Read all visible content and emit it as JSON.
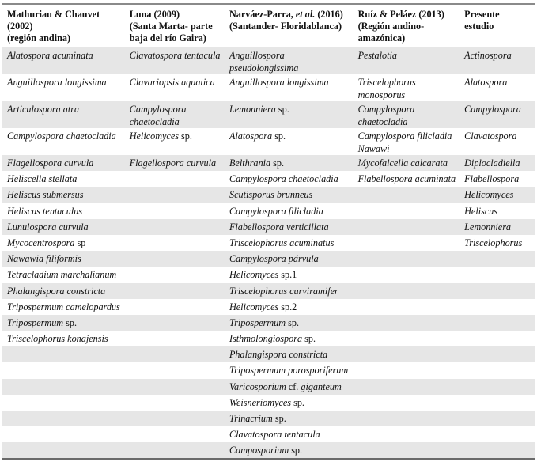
{
  "table": {
    "headers": [
      [
        [
          "Mathuriau & Chauvet"
        ],
        [
          "(2002)"
        ],
        [
          "(región andina)"
        ]
      ],
      [
        [
          "Luna (2009)"
        ],
        [
          "(Santa Marta- parte"
        ],
        [
          "baja del río Gaira)"
        ]
      ],
      [
        [
          "Narváez-Parra, ",
          "et al.",
          " (2016)"
        ],
        [
          "(Santander- Floridablanca)"
        ]
      ],
      [
        [
          "Ruíz & Peláez (2013)"
        ],
        [
          "(Región andino-"
        ],
        [
          "amazónica)"
        ]
      ],
      [
        [
          "Presente estudio"
        ]
      ]
    ],
    "rows": [
      [
        "Alatospora acuminata",
        "Clavatospora tentacula",
        "Anguillospora pseudolongissima",
        "Pestalotia",
        "Actinospora"
      ],
      [
        "Anguillospora longissima",
        "Clavariopsis aquatica",
        "Anguillospora longissima",
        "Triscelophorus monosporus",
        "Alatospora"
      ],
      [
        "Articulospora atra",
        "Campylospora chaetocladia",
        "Lemonniera sp.",
        "Campylospora chaetocladia",
        "Campylospora"
      ],
      [
        "Campylospora chaetocladia",
        "Helicomyces sp.",
        "Alatospora sp.",
        "Campylospora filicladia Nawawi",
        "Clavatospora"
      ],
      [
        "Flagellospora curvula",
        "Flagellospora curvula",
        "Belthrania sp.",
        "Mycofalcella calcarata",
        "Diplocladiella"
      ],
      [
        "Heliscella stellata",
        "",
        "Campylospora chaetocladia",
        "Flabellospora acuminata",
        "Flabellospora"
      ],
      [
        "Heliscus submersus",
        "",
        "Scutisporus brunneus",
        "",
        "Helicomyces"
      ],
      [
        "Heliscus tentaculus",
        "",
        "Campylospora filicladia",
        "",
        "Heliscus"
      ],
      [
        "Lunulospora curvula",
        "",
        "Flabellospora verticillata",
        "",
        "Lemonniera"
      ],
      [
        "Mycocentrospora sp",
        "",
        "Triscelophorus acuminatus",
        "",
        "Triscelophorus"
      ],
      [
        "Nawawia filiformis",
        "",
        "Campylospora párvula",
        "",
        ""
      ],
      [
        "Tetracladium marchalianum",
        "",
        "Helicomyces sp.1",
        "",
        ""
      ],
      [
        "Phalangispora constricta",
        "",
        "Triscelophorus curviramifer",
        "",
        ""
      ],
      [
        "Tripospermum camelopardus",
        "",
        "Helicomyces sp.2",
        "",
        ""
      ],
      [
        "Tripospermum sp.",
        "",
        "Tripospermum sp.",
        "",
        ""
      ],
      [
        "Triscelophorus konajensis",
        "",
        "Isthmolongiospora sp.",
        "",
        ""
      ],
      [
        "",
        "",
        "Phalangispora constricta",
        "",
        ""
      ],
      [
        "",
        "",
        "Tripospermum porosporiferum",
        "",
        ""
      ],
      [
        "",
        "",
        "Varicosporium cf. giganteum",
        "",
        ""
      ],
      [
        "",
        "",
        "Weisneriomyces sp.",
        "",
        ""
      ],
      [
        "",
        "",
        "Trinacrium sp.",
        "",
        ""
      ],
      [
        "",
        "",
        "Clavatospora tentacula",
        "",
        ""
      ],
      [
        "",
        "",
        "Camposporium sp.",
        "",
        ""
      ]
    ],
    "colors": {
      "stripe": "#e6e6e6",
      "rule": "#6a6a6a"
    }
  }
}
